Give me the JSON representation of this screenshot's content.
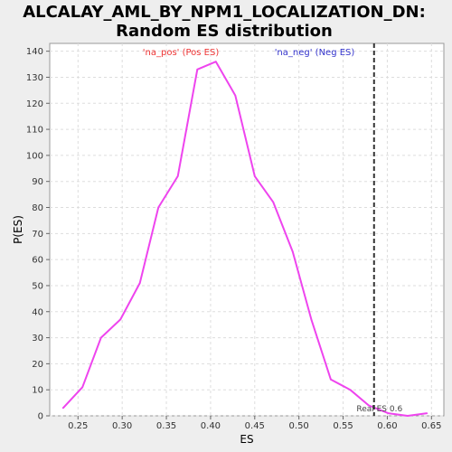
{
  "chart_data": {
    "type": "line",
    "title_line1": "ALCALAY_AML_BY_NPM1_LOCALIZATION_DN:",
    "title_line2": "Random ES distribution",
    "xlabel": "ES",
    "ylabel": "P(ES)",
    "xlim": [
      0.218,
      0.664
    ],
    "ylim": [
      0,
      143
    ],
    "xticks": [
      0.25,
      0.3,
      0.35,
      0.4,
      0.45,
      0.5,
      0.55,
      0.6,
      0.65
    ],
    "xtick_labels": [
      "0.25",
      "0.30",
      "0.35",
      "0.40",
      "0.45",
      "0.50",
      "0.55",
      "0.60",
      "0.65"
    ],
    "yticks": [
      0,
      10,
      20,
      30,
      40,
      50,
      60,
      70,
      80,
      90,
      100,
      110,
      120,
      130,
      140
    ],
    "ytick_labels": [
      "0",
      "10",
      "20",
      "30",
      "40",
      "50",
      "60",
      "70",
      "80",
      "90",
      "100",
      "110",
      "120",
      "130",
      "140"
    ],
    "grid": true,
    "series": [
      {
        "color": "#ee44ee",
        "x": [
          0.233,
          0.255,
          0.276,
          0.298,
          0.32,
          0.341,
          0.363,
          0.385,
          0.406,
          0.428,
          0.45,
          0.471,
          0.493,
          0.514,
          0.536,
          0.558,
          0.579,
          0.601,
          0.623,
          0.645
        ],
        "y": [
          3,
          11,
          30,
          37,
          51,
          80,
          92,
          133,
          136,
          123,
          92,
          82,
          63,
          37,
          14,
          10,
          4,
          1,
          0,
          1
        ]
      }
    ],
    "legend": [
      {
        "label": "'na_pos' (Pos ES)",
        "color": "#ee3333"
      },
      {
        "label": "'na_neg' (Neg ES)",
        "color": "#3333cc"
      }
    ],
    "reference_line": {
      "x": 0.585,
      "label": "Real ES 0.6",
      "color": "#333333"
    }
  }
}
